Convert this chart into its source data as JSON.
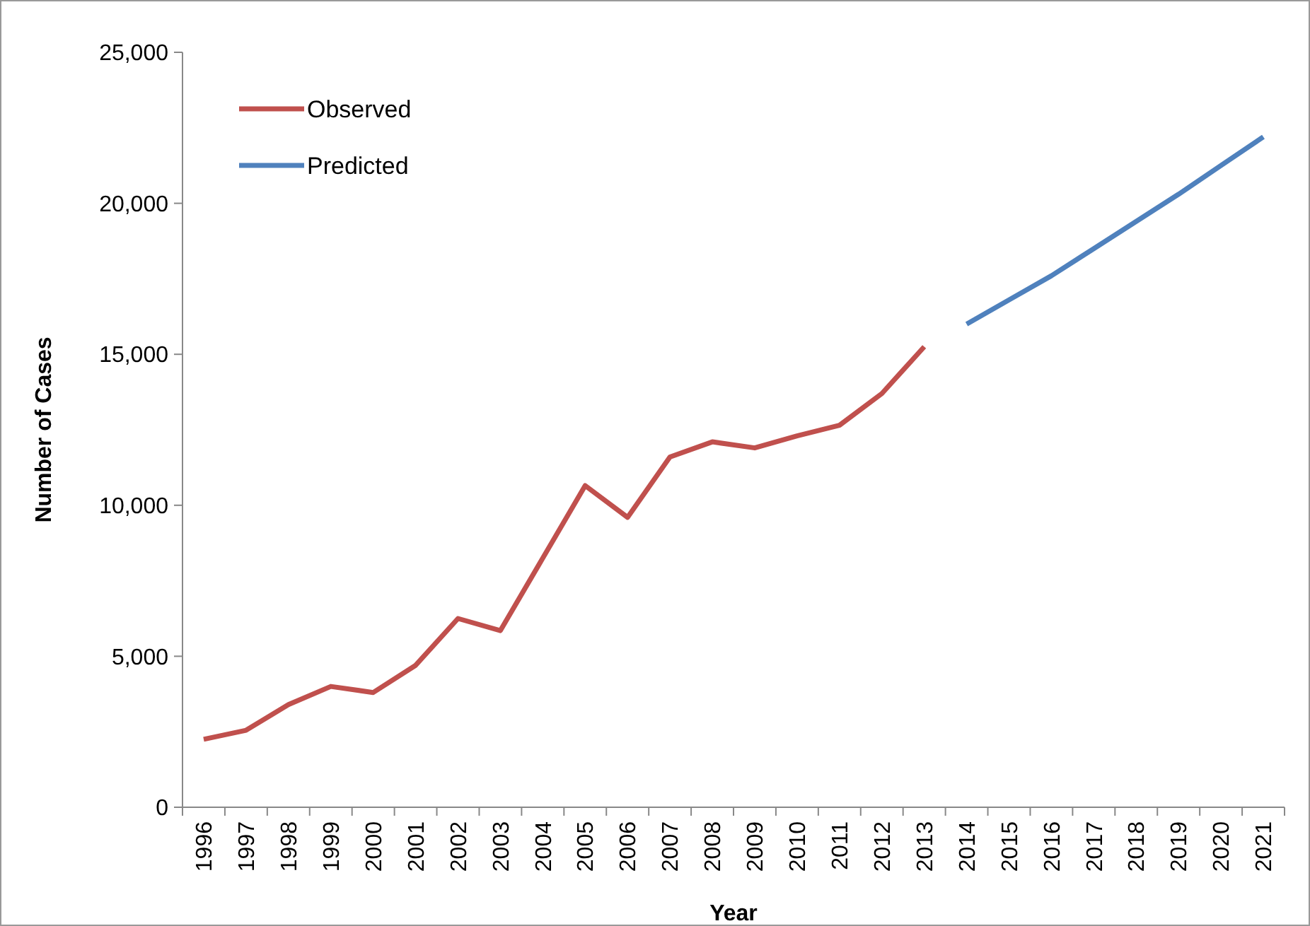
{
  "chart_data": {
    "type": "line",
    "xlabel": "Year",
    "ylabel": "Number of Cases",
    "categories": [
      "1996",
      "1997",
      "1998",
      "1999",
      "2000",
      "2001",
      "2002",
      "2003",
      "2004",
      "2005",
      "2006",
      "2007",
      "2008",
      "2009",
      "2010",
      "2011",
      "2012",
      "2013",
      "2014",
      "2015",
      "2016",
      "2017",
      "2018",
      "2019",
      "2020",
      "2021"
    ],
    "series": [
      {
        "name": "Observed",
        "color": "#c0504d",
        "values": [
          2250,
          2550,
          3400,
          4000,
          3800,
          4700,
          6250,
          5850,
          8250,
          10650,
          9600,
          11600,
          12100,
          11900,
          12300,
          12650,
          13700,
          15250,
          null,
          null,
          null,
          null,
          null,
          null,
          null,
          null
        ]
      },
      {
        "name": "Predicted",
        "color": "#4f81bd",
        "values": [
          null,
          null,
          null,
          null,
          null,
          null,
          null,
          null,
          null,
          null,
          null,
          null,
          null,
          null,
          null,
          null,
          null,
          null,
          16000,
          16800,
          17600,
          18500,
          19400,
          20300,
          21250,
          22200
        ]
      }
    ],
    "ylim": [
      0,
      25000
    ],
    "yticks": [
      {
        "value": 0,
        "label": "0"
      },
      {
        "value": 5000,
        "label": "5,000"
      },
      {
        "value": 10000,
        "label": "10,000"
      },
      {
        "value": 15000,
        "label": "15,000"
      },
      {
        "value": 20000,
        "label": "20,000"
      },
      {
        "value": 25000,
        "label": "25,000"
      }
    ],
    "grid": false,
    "legend": "top left",
    "marker": "none",
    "line_style": "solid"
  }
}
